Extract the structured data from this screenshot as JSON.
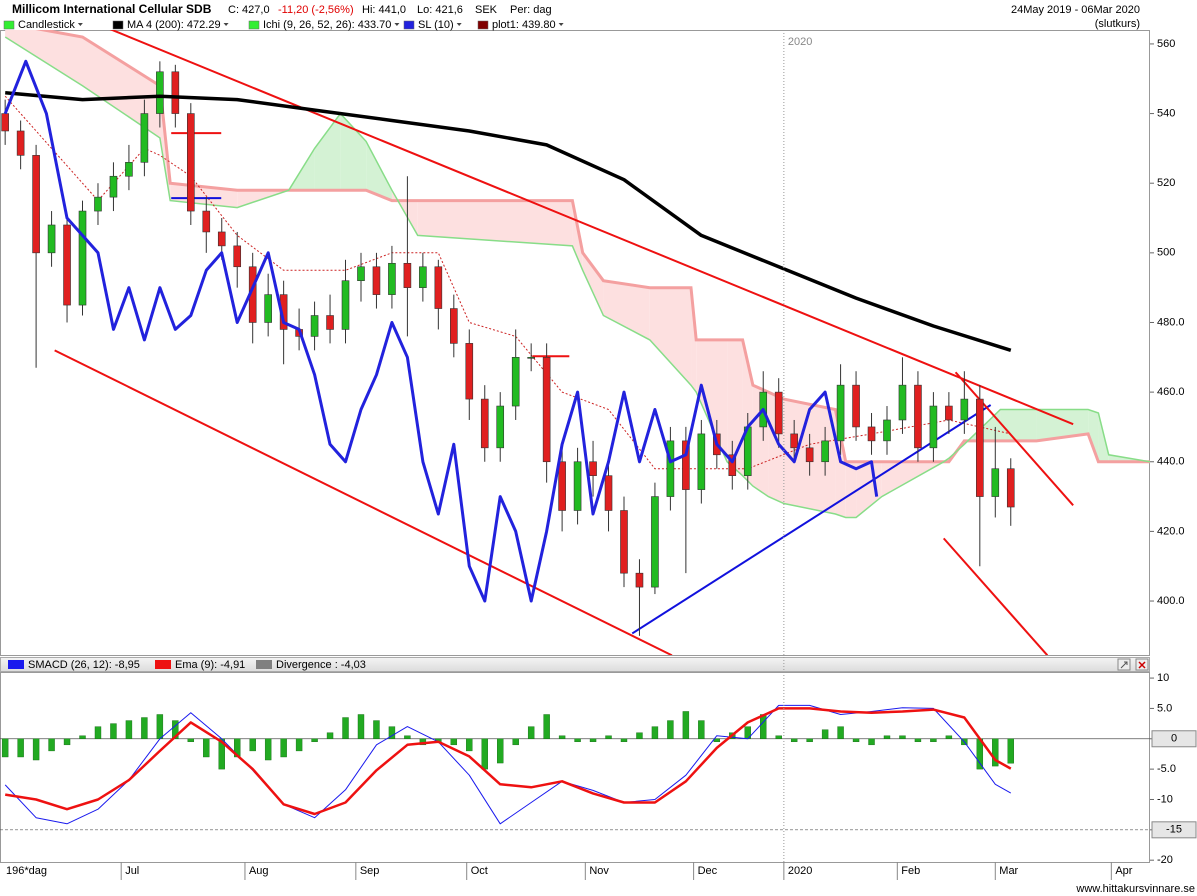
{
  "header": {
    "title": "Millicom International Cellular SDB",
    "close": "C: 427,0",
    "change": "-11,20 (-2,56%)",
    "high": "Hi: 441,0",
    "low": "Lo: 421,6",
    "currency": "SEK",
    "period": "Per: dag",
    "range": "24May 2019 - 06Mar 2020",
    "price_type": "(slutkurs)"
  },
  "footer": "www.hittakursvinnare.se",
  "chart_data": [
    {
      "type": "candlestick",
      "x_label": "196*dag",
      "xlim": [
        -1,
        222
      ],
      "ylim": [
        384.5,
        564
      ],
      "yticks": [
        400,
        420,
        440,
        460,
        480,
        500,
        520,
        540,
        560
      ],
      "ytick_labels": [
        {
          "value": 400,
          "label": "400.0"
        },
        {
          "value": 420,
          "label": "420.0"
        },
        {
          "value": 440,
          "label": "440.0"
        },
        {
          "value": 460,
          "label": "460.0"
        },
        {
          "value": 480,
          "label": "480.0"
        },
        {
          "value": 500,
          "label": "500"
        },
        {
          "value": 520,
          "label": "520"
        },
        {
          "value": 540,
          "label": "540"
        },
        {
          "value": 560,
          "label": "560"
        }
      ],
      "xticks": [
        {
          "value": 22.5,
          "label": "Jul"
        },
        {
          "value": 46.5,
          "label": "Aug"
        },
        {
          "value": 68,
          "label": "Sep"
        },
        {
          "value": 89.5,
          "label": "Oct"
        },
        {
          "value": 112.5,
          "label": "Nov"
        },
        {
          "value": 133.5,
          "label": "Dec"
        },
        {
          "value": 151,
          "label": "2020"
        },
        {
          "value": 173,
          "label": "Feb"
        },
        {
          "value": 192,
          "label": "Mar"
        },
        {
          "value": 214.5,
          "label": "Apr"
        }
      ],
      "divider_tick": 6,
      "candles": {
        "name": "Candlestick",
        "up_color": "#22bb22",
        "down_color": "#e02020",
        "swatch": "#33ee33",
        "x": [
          0,
          3,
          6,
          9,
          12,
          15,
          18,
          21,
          24,
          27,
          30,
          33,
          36,
          39,
          42,
          45,
          48,
          51,
          54,
          57,
          60,
          63,
          66,
          69,
          72,
          75,
          78,
          81,
          84,
          87,
          90,
          93,
          96,
          99,
          102,
          105,
          108,
          111,
          114,
          117,
          120,
          123,
          126,
          129,
          132,
          135,
          138,
          141,
          144,
          147,
          150,
          153,
          156,
          159,
          162,
          165,
          168,
          171,
          174,
          177,
          180,
          183,
          186,
          189,
          192,
          195
        ],
        "open": [
          540,
          535,
          528,
          500,
          508,
          485,
          512,
          516,
          522,
          526,
          540,
          552,
          540,
          512,
          506,
          502,
          496,
          480,
          488,
          478,
          476,
          482,
          478,
          492,
          496,
          488,
          497,
          490,
          496,
          484,
          474,
          458,
          444,
          456,
          470,
          470,
          440,
          426,
          440,
          436,
          426,
          408,
          404,
          430,
          446,
          432,
          448,
          442,
          436,
          450,
          460,
          448,
          444,
          440,
          446,
          462,
          450,
          446,
          452,
          462,
          444,
          456,
          452,
          458,
          430,
          438
        ],
        "high": [
          544,
          538,
          531,
          512,
          511,
          515,
          520,
          526,
          531,
          544,
          555,
          554,
          543,
          516,
          510,
          506,
          500,
          494,
          492,
          484,
          486,
          488,
          498,
          500,
          500,
          502,
          522,
          500,
          498,
          488,
          478,
          462,
          460,
          478,
          474,
          474,
          444,
          444,
          446,
          440,
          430,
          412,
          434,
          450,
          450,
          452,
          452,
          446,
          454,
          466,
          464,
          452,
          448,
          450,
          468,
          466,
          454,
          456,
          470,
          466,
          460,
          460,
          466,
          462,
          450,
          441
        ],
        "low": [
          531,
          524,
          467,
          496,
          480,
          482,
          508,
          512,
          518,
          522,
          536,
          536,
          508,
          500,
          498,
          490,
          474,
          476,
          468,
          472,
          472,
          474,
          474,
          486,
          484,
          484,
          476,
          486,
          478,
          470,
          452,
          440,
          440,
          452,
          466,
          434,
          420,
          422,
          430,
          420,
          404,
          390,
          402,
          426,
          408,
          428,
          438,
          432,
          432,
          446,
          444,
          440,
          436,
          436,
          442,
          446,
          442,
          442,
          448,
          440,
          440,
          448,
          448,
          410,
          424,
          421.6
        ],
        "close": [
          535,
          528,
          500,
          508,
          485,
          512,
          516,
          522,
          526,
          540,
          552,
          540,
          512,
          506,
          502,
          496,
          480,
          488,
          478,
          476,
          482,
          478,
          492,
          496,
          488,
          497,
          490,
          496,
          484,
          474,
          458,
          444,
          456,
          470,
          470,
          440,
          426,
          440,
          436,
          426,
          408,
          404,
          430,
          446,
          432,
          448,
          442,
          436,
          450,
          460,
          448,
          444,
          440,
          446,
          462,
          450,
          446,
          452,
          462,
          444,
          456,
          452,
          458,
          430,
          438,
          427
        ]
      },
      "ichimoku": {
        "name": "Ichi (9, 26, 52, 26): 433.70",
        "swatch": "#33ee33",
        "span_a_color": "#88dd88",
        "span_b_color": "#f4a0a0",
        "up_fill": "#d4f2d4",
        "down_fill": "#fde0e0",
        "kijun_color": "#cc2222",
        "x": [
          0,
          15,
          30,
          32,
          45,
          55,
          60,
          65,
          70,
          75,
          80,
          110,
          112,
          116,
          125,
          133,
          134,
          140,
          143,
          145,
          148,
          151,
          161,
          163,
          165,
          170,
          182,
          183,
          186,
          193,
          200,
          210,
          212,
          214,
          222
        ],
        "span_a": [
          562,
          548,
          533,
          515,
          513,
          518,
          530,
          540,
          532,
          518,
          505,
          502,
          495,
          482,
          475,
          462,
          460,
          440,
          436,
          433,
          430,
          428,
          425,
          424,
          424,
          430,
          440,
          441,
          445,
          455,
          455,
          455,
          454,
          442,
          440
        ],
        "span_b": [
          566,
          562,
          548,
          520,
          518,
          518,
          518,
          518,
          518,
          515,
          515,
          515,
          500,
          492,
          490,
          490,
          475,
          475,
          475,
          462,
          460,
          458,
          455,
          440,
          440,
          440,
          440,
          440,
          446,
          446,
          446,
          448,
          440,
          440,
          440
        ],
        "kijun_x": [
          0,
          9,
          18,
          27,
          30,
          36,
          45,
          54,
          66,
          75,
          84,
          90,
          99,
          108,
          117,
          126,
          135,
          144,
          156,
          168,
          183,
          195
        ],
        "kijun": [
          545,
          530,
          515,
          530,
          528,
          522,
          505,
          495,
          495,
          500,
          500,
          480,
          476,
          460,
          455,
          438,
          438,
          438,
          445,
          448,
          452,
          448
        ]
      },
      "lines": [
        {
          "name": "MA 4 (200): 472.29",
          "color": "#000000",
          "width": 3.5,
          "x": [
            0,
            15,
            30,
            45,
            60,
            75,
            90,
            105,
            120,
            135,
            150,
            165,
            180,
            195
          ],
          "values": [
            546,
            544,
            545,
            544,
            541,
            538,
            535,
            531,
            521,
            505,
            496,
            487,
            479,
            472
          ]
        },
        {
          "name": "SL (10)",
          "color": "#2222dd",
          "width": 3,
          "x": [
            0,
            4,
            8,
            12,
            15,
            18,
            21,
            24,
            27,
            30,
            33,
            36,
            39,
            42,
            45,
            48,
            51,
            54,
            57,
            60,
            63,
            66,
            69,
            72,
            75,
            78,
            81,
            84,
            87,
            90,
            93,
            96,
            99,
            102,
            105,
            108,
            111,
            114,
            117,
            120,
            123,
            126,
            129,
            132,
            135,
            138,
            141,
            144,
            147,
            150,
            153,
            156,
            159,
            162,
            165,
            168,
            169
          ],
          "values": [
            540,
            555,
            540,
            510,
            505,
            500,
            478,
            490,
            475,
            490,
            478,
            482,
            495,
            500,
            480,
            490,
            500,
            480,
            478,
            465,
            445,
            440,
            455,
            465,
            480,
            470,
            440,
            425,
            445,
            410,
            400,
            430,
            420,
            400,
            420,
            445,
            460,
            425,
            440,
            460,
            440,
            455,
            440,
            442,
            462,
            445,
            440,
            450,
            455,
            445,
            440,
            455,
            460,
            440,
            438,
            440,
            430
          ]
        }
      ],
      "trendlines": {
        "name": "plot1: 439.80",
        "swatch": "#800000",
        "items": [
          {
            "color": "#ee1111",
            "x": [
              18.3,
              207.1
            ],
            "values": [
              565.5,
              450.8
            ]
          },
          {
            "color": "#ee1111",
            "x": [
              9.6,
              129.3
            ],
            "values": [
              472,
              384.4
            ]
          },
          {
            "color": "#1111dd",
            "x": [
              121.6,
              191.1
            ],
            "values": [
              390.7,
              456.3
            ]
          },
          {
            "color": "#ee1111",
            "x": [
              184.3,
              207.1
            ],
            "values": [
              465.7,
              427.5
            ]
          },
          {
            "color": "#ee1111",
            "x": [
              182,
              202.1
            ],
            "values": [
              418,
              384.4
            ]
          },
          {
            "color": "#ee1111",
            "x": [
              32.2,
              41.9
            ],
            "values": [
              534.4,
              534.4
            ]
          },
          {
            "color": "#1111dd",
            "x": [
              32.2,
              41.9
            ],
            "values": [
              515.7,
              515.7
            ]
          },
          {
            "color": "#ee1111",
            "x": [
              102.3,
              109.4
            ],
            "values": [
              470.3,
              470.3
            ]
          }
        ]
      }
    },
    {
      "type": "macd",
      "xlim": [
        -1,
        222
      ],
      "ylim": [
        -20.3,
        11
      ],
      "yticks": [
        10,
        {
          "value": 5,
          "label": "5.0"
        },
        0,
        {
          "value": -5,
          "label": "-5.0"
        },
        -10,
        -15,
        -20
      ],
      "reference_lines": [
        0,
        -15
      ],
      "series": [
        {
          "name": "SMACD (26, 12): -8,95",
          "color": "#1a1aee",
          "width": 1,
          "x": [
            0,
            6,
            12,
            18,
            24,
            30,
            36,
            42,
            48,
            54,
            60,
            66,
            72,
            78,
            84,
            90,
            96,
            102,
            108,
            114,
            120,
            126,
            132,
            138,
            144,
            150,
            156,
            162,
            168,
            174,
            180,
            186,
            192,
            195
          ],
          "values": [
            -7.6,
            -13,
            -14,
            -11.6,
            -6.8,
            0,
            4.3,
            0,
            -5.2,
            -10.8,
            -13,
            -8.4,
            -1,
            2,
            -0.5,
            -6,
            -14,
            -10.5,
            -7,
            -8.5,
            -10.5,
            -10,
            -6,
            0.5,
            0,
            5.5,
            5.5,
            4,
            4.5,
            5.1,
            5,
            -0.5,
            -7.5,
            -8.95
          ]
        },
        {
          "name": "Ema (9): -4,91",
          "color": "#ee1111",
          "width": 2.5,
          "x": [
            0,
            6,
            12,
            18,
            24,
            30,
            36,
            42,
            48,
            54,
            60,
            66,
            72,
            78,
            84,
            90,
            96,
            102,
            108,
            114,
            120,
            126,
            132,
            138,
            144,
            150,
            156,
            162,
            168,
            174,
            180,
            186,
            192,
            195
          ],
          "values": [
            -9.2,
            -10,
            -11.6,
            -10,
            -6.8,
            -2,
            2.7,
            -0.5,
            -5,
            -10.8,
            -12.4,
            -10.5,
            -5.2,
            -1,
            -0.5,
            -2.9,
            -7.5,
            -8,
            -7,
            -9,
            -10.5,
            -10.5,
            -7,
            -1.5,
            2.7,
            5,
            5,
            4.5,
            4.3,
            4.5,
            4.8,
            3.5,
            -3.5,
            -4.91
          ]
        }
      ],
      "histogram": {
        "name": "Divergence : -4,03",
        "swatch": "#808080",
        "color": "#22aa22",
        "x": [
          0,
          3,
          6,
          9,
          12,
          15,
          18,
          21,
          24,
          27,
          30,
          33,
          36,
          39,
          42,
          45,
          48,
          51,
          54,
          57,
          60,
          63,
          66,
          69,
          72,
          75,
          78,
          81,
          84,
          87,
          90,
          93,
          96,
          99,
          102,
          105,
          108,
          111,
          114,
          117,
          120,
          123,
          126,
          129,
          132,
          135,
          138,
          141,
          144,
          147,
          150,
          153,
          156,
          159,
          162,
          165,
          168,
          171,
          174,
          177,
          180,
          183,
          186,
          189,
          192,
          195
        ],
        "values": [
          -3,
          -3,
          -3.5,
          -2,
          -1,
          0.5,
          2,
          2.5,
          3,
          3.5,
          4,
          3,
          -0.5,
          -3,
          -5,
          -3,
          -2,
          -3.5,
          -3,
          -2,
          -0.5,
          1,
          3.5,
          4,
          3,
          2,
          0.5,
          -1,
          -0.5,
          -1,
          -2,
          -5,
          -4,
          -1,
          2,
          4,
          0.5,
          -0.5,
          -0.5,
          0.5,
          -0.5,
          1,
          2,
          3,
          4.5,
          3,
          -0.5,
          1,
          2,
          4,
          0.5,
          -0.5,
          -0.5,
          1.5,
          2,
          -0.5,
          -1,
          0.5,
          0.5,
          -0.5,
          -0.5,
          0.5,
          -1,
          -5,
          -4.5,
          -4.03
        ]
      }
    }
  ]
}
